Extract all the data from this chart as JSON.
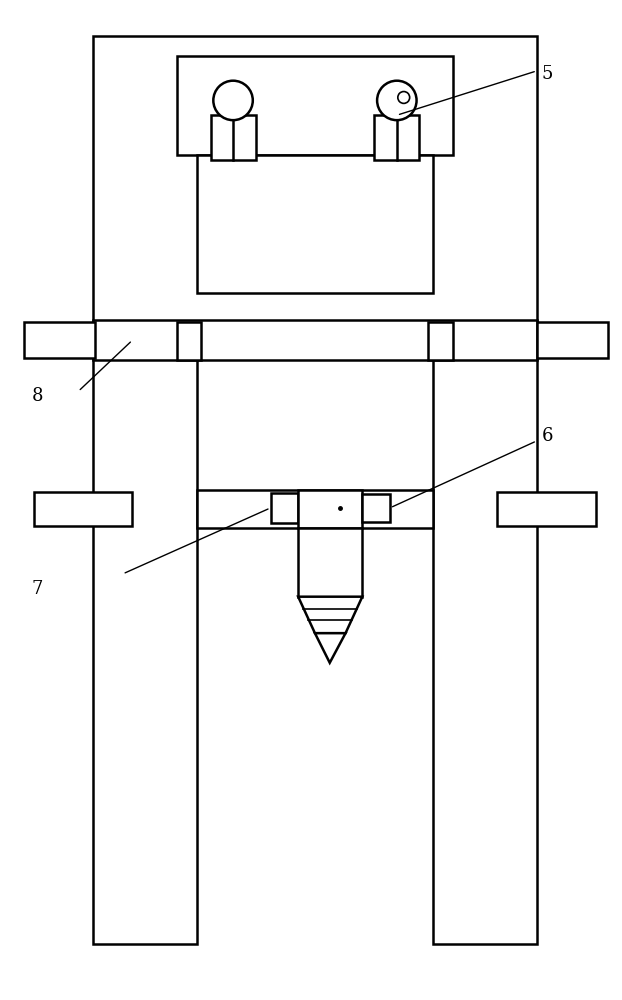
{
  "bg_color": "#ffffff",
  "line_color": "#000000",
  "lw": 1.8,
  "lw2": 1.2,
  "fig_width": 6.22,
  "fig_height": 10.0
}
